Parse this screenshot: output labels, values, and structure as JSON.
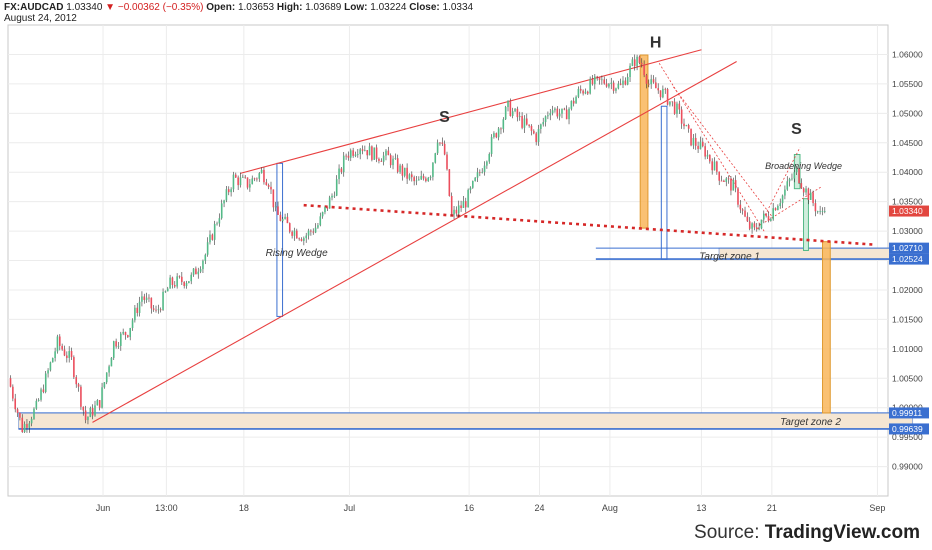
{
  "header": {
    "symbol": "FX:AUDCAD",
    "last": "1.03340",
    "change": "−0.00362 (−0.35%)",
    "open_label": "Open:",
    "open": "1.03653",
    "high_label": "High:",
    "high": "1.03689",
    "low_label": "Low:",
    "low": "1.03224",
    "close_label": "Close:",
    "close": "1.0334",
    "date": "August 24, 2012"
  },
  "source": {
    "prefix": "Source: ",
    "name": "TradingView.com"
  },
  "colors": {
    "up": "#53b987",
    "down": "#eb4d5c",
    "wick": "#333333",
    "trend": "#e84040",
    "neckline": "#d62828",
    "zone_fill": "#f5e6d3",
    "zone_line": "#3a6fd0",
    "orange": "#f9b65b",
    "blue_box": "#3a6fd0",
    "green_box": "#53b987"
  },
  "chart_data": {
    "type": "candlestick",
    "yaxis": {
      "min": 0.985,
      "max": 1.065,
      "ticks": [
        "0.99000",
        "0.99500",
        "1.00000",
        "1.00500",
        "1.01000",
        "1.01500",
        "1.02000",
        "1.02500",
        "1.03000",
        "1.03500",
        "1.04000",
        "1.04500",
        "1.05000",
        "1.05500",
        "1.06000"
      ]
    },
    "xaxis": {
      "n": 125,
      "ticks": [
        {
          "i": 13,
          "label": "Jun"
        },
        {
          "i": 22,
          "label": "13:00"
        },
        {
          "i": 33,
          "label": "18"
        },
        {
          "i": 48,
          "label": "Jul"
        },
        {
          "i": 65,
          "label": "16"
        },
        {
          "i": 75,
          "label": "24"
        },
        {
          "i": 85,
          "label": "Aug"
        },
        {
          "i": 98,
          "label": "13"
        },
        {
          "i": 108,
          "label": "21"
        },
        {
          "i": 123,
          "label": "Sep"
        }
      ]
    },
    "price_path": [
      [
        0,
        1.005
      ],
      [
        2,
        0.9965
      ],
      [
        4,
        1.0
      ],
      [
        7,
        1.011
      ],
      [
        9,
        1.008
      ],
      [
        11,
        0.998
      ],
      [
        13,
        1.001
      ],
      [
        15,
        1.011
      ],
      [
        17,
        1.013
      ],
      [
        19,
        1.019
      ],
      [
        21,
        1.016
      ],
      [
        23,
        1.021
      ],
      [
        26,
        1.022
      ],
      [
        28,
        1.026
      ],
      [
        30,
        1.033
      ],
      [
        32,
        1.039
      ],
      [
        34,
        1.038
      ],
      [
        36,
        1.04
      ],
      [
        37,
        1.0385
      ],
      [
        38,
        1.033
      ],
      [
        40,
        1.0305
      ],
      [
        42,
        1.029
      ],
      [
        44,
        1.031
      ],
      [
        46,
        1.036
      ],
      [
        48,
        1.043
      ],
      [
        50,
        1.0445
      ],
      [
        52,
        1.043
      ],
      [
        54,
        1.0425
      ],
      [
        56,
        1.04
      ],
      [
        58,
        1.038
      ],
      [
        60,
        1.04
      ],
      [
        61,
        1.046
      ],
      [
        62,
        1.043
      ],
      [
        63,
        1.0325
      ],
      [
        65,
        1.035
      ],
      [
        67,
        1.04
      ],
      [
        69,
        1.046
      ],
      [
        71,
        1.051
      ],
      [
        73,
        1.0485
      ],
      [
        75,
        1.046
      ],
      [
        77,
        1.051
      ],
      [
        79,
        1.0495
      ],
      [
        81,
        1.0535
      ],
      [
        83,
        1.055
      ],
      [
        85,
        1.0555
      ],
      [
        87,
        1.0545
      ],
      [
        89,
        1.059
      ],
      [
        90,
        1.0585
      ],
      [
        91,
        1.055
      ],
      [
        93,
        1.0535
      ],
      [
        95,
        1.0505
      ],
      [
        97,
        1.0455
      ],
      [
        99,
        1.0435
      ],
      [
        101,
        1.0395
      ],
      [
        103,
        1.0375
      ],
      [
        105,
        1.031
      ],
      [
        106,
        1.03
      ],
      [
        107,
        1.032
      ],
      [
        108,
        1.0325
      ],
      [
        109,
        1.0345
      ],
      [
        110,
        1.036
      ],
      [
        111,
        1.0385
      ],
      [
        112,
        1.04
      ],
      [
        113,
        1.0375
      ],
      [
        114,
        1.0355
      ],
      [
        115,
        1.0334
      ]
    ],
    "last_price": {
      "value": 1.0334,
      "label": "1.03340"
    },
    "price_labels": [
      {
        "value": 1.0271,
        "label": "1.02710"
      },
      {
        "value": 1.02524,
        "label": "1.02524"
      },
      {
        "value": 0.99911,
        "label": "0.99911"
      },
      {
        "value": 0.99639,
        "label": "0.99639"
      }
    ],
    "annotations": [
      {
        "text": "H",
        "i": 91.5,
        "y": 1.0612,
        "size": 16,
        "bold": true
      },
      {
        "text": "S",
        "i": 61.5,
        "y": 1.0485,
        "size": 16,
        "bold": true
      },
      {
        "text": "S",
        "i": 111.5,
        "y": 1.0465,
        "size": 16,
        "bold": true
      },
      {
        "text": "Rising Wedge",
        "i": 40.5,
        "y": 1.0258,
        "size": 10,
        "italic": true
      },
      {
        "text": "Broadening Wedge",
        "i": 112.5,
        "y": 1.0405,
        "size": 9,
        "italic": true
      },
      {
        "text": "Target zone 1",
        "i": 102,
        "y": 1.0252,
        "size": 10,
        "italic": true
      },
      {
        "text": "Target zone 2",
        "i": 113.5,
        "y": 0.9971,
        "size": 10,
        "italic": true
      }
    ],
    "trend_lines": [
      {
        "from": [
          32.5,
          1.0398
        ],
        "to": [
          98,
          1.0608
        ],
        "kind": "solid"
      },
      {
        "from": [
          11.5,
          0.9975
        ],
        "to": [
          103,
          1.0588
        ],
        "kind": "solid"
      },
      {
        "from": [
          41.5,
          1.0344
        ],
        "to": [
          122.5,
          1.0277
        ],
        "kind": "dotted"
      },
      {
        "from": [
          92,
          1.0585
        ],
        "to": [
          107,
          1.0298
        ],
        "kind": "thin"
      },
      {
        "from": [
          94,
          1.0545
        ],
        "to": [
          108,
          1.0325
        ],
        "kind": "thin"
      },
      {
        "from": [
          106,
          1.0303
        ],
        "to": [
          112,
          1.0442
        ],
        "kind": "thin"
      },
      {
        "from": [
          107,
          1.0315
        ],
        "to": [
          115,
          1.0375
        ],
        "kind": "thin"
      }
    ],
    "zones": [
      {
        "label": "Target zone 1",
        "i0": 100.5,
        "i1": 128,
        "y0": 1.0271,
        "y1": 1.02524,
        "line_from": 83
      },
      {
        "label": "Target zone 2",
        "i0": 1,
        "i1": 128,
        "y0": 0.99911,
        "y1": 0.99639,
        "line_from": 1
      }
    ],
    "boxes": [
      {
        "i0": 37.7,
        "i1": 38.5,
        "y0": 1.0415,
        "y1": 1.0155,
        "kind": "blue"
      },
      {
        "i0": 89.3,
        "i1": 90.4,
        "y0": 1.0599,
        "y1": 1.0305,
        "kind": "orange"
      },
      {
        "i0": 92.3,
        "i1": 93.1,
        "y0": 1.0512,
        "y1": 1.0252,
        "kind": "blue"
      },
      {
        "i0": 111.2,
        "i1": 112.0,
        "y0": 1.043,
        "y1": 1.0372,
        "kind": "green"
      },
      {
        "i0": 112.5,
        "i1": 113.2,
        "y0": 1.0355,
        "y1": 1.0267,
        "kind": "green"
      },
      {
        "i0": 115.2,
        "i1": 116.3,
        "y0": 1.0282,
        "y1": 0.9991,
        "kind": "orange"
      }
    ]
  }
}
